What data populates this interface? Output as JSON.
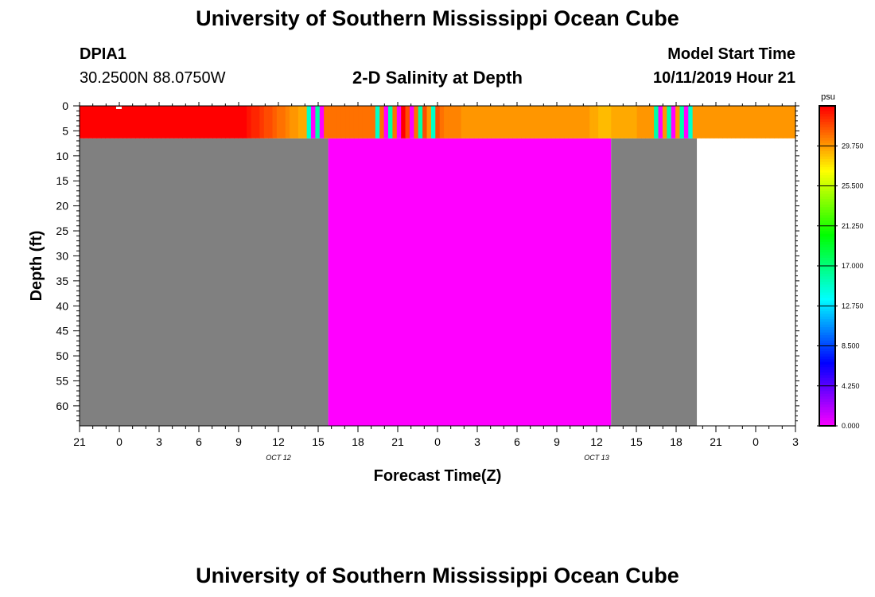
{
  "page": {
    "title_top": "University of Southern Mississippi Ocean Cube",
    "title_bottom": "University of Southern Mississippi Ocean Cube"
  },
  "header": {
    "station": "DPIA1",
    "coords": "30.2500N 88.0750W",
    "subtitle": "2-D Salinity at Depth",
    "model_label": "Model Start Time",
    "model_time": "10/11/2019 Hour 21"
  },
  "chart_data": {
    "type": "heatmap",
    "title": "2-D Salinity at Depth",
    "xlabel": "Forecast Time(Z)",
    "ylabel": "Depth (ft)",
    "x_tick_labels": [
      "21",
      "0",
      "3",
      "6",
      "9",
      "12",
      "15",
      "18",
      "21",
      "0",
      "3",
      "6",
      "9",
      "12",
      "15",
      "18",
      "21",
      "0",
      "3"
    ],
    "x_date_labels": [
      {
        "label": "OCT 12",
        "at_tick": 5
      },
      {
        "label": "OCT 13",
        "at_tick": 13
      }
    ],
    "y_tick_labels": [
      "0",
      "5",
      "10",
      "15",
      "20",
      "25",
      "30",
      "35",
      "40",
      "45",
      "50",
      "55",
      "60"
    ],
    "ylim": [
      0,
      64
    ],
    "y_reversed": true,
    "colorbar": {
      "unit": "psu",
      "min": 0,
      "max": 34,
      "labels": [
        "29.750",
        "25.500",
        "21.250",
        "17.000",
        "12.750",
        "8.500",
        "4.250",
        "0.000"
      ],
      "label_values": [
        29.75,
        25.5,
        21.25,
        17.0,
        12.75,
        8.5,
        4.25,
        0.0
      ]
    },
    "surface_layer_depth_ft": 6.5,
    "surface_salinity_hourly": [
      34,
      34,
      34,
      34,
      34,
      34,
      34,
      34,
      34,
      34,
      34,
      34,
      34,
      34,
      34,
      34,
      34,
      34,
      34,
      34,
      34,
      34,
      34,
      34,
      34,
      34,
      34,
      34,
      34,
      34,
      34,
      34,
      34,
      34,
      34,
      34,
      34,
      34,
      34,
      33.5,
      33,
      33,
      32.5,
      32,
      32,
      31.5,
      31,
      31,
      30.5,
      30,
      30,
      29.5,
      29.5,
      15,
      -1,
      16,
      -1,
      31,
      31,
      31,
      31,
      31,
      31,
      31,
      31,
      31,
      31,
      31,
      31,
      15,
      31,
      -1,
      16,
      31,
      -1,
      34,
      32,
      -1,
      31,
      16,
      32,
      30,
      15,
      32,
      31,
      30.5,
      30.5,
      30.5,
      30.5,
      30,
      30,
      30,
      30,
      30,
      30,
      30,
      30,
      30,
      30,
      30,
      30,
      30,
      30,
      30,
      30,
      30,
      30,
      30,
      30,
      30,
      30,
      30,
      30,
      30,
      30,
      30,
      30,
      30,
      30,
      29.5,
      29.5,
      29,
      29,
      29,
      29.5,
      29.5,
      29.5,
      29.5,
      29.5,
      29.5,
      30,
      30,
      30,
      30,
      16,
      -1,
      30,
      16,
      -1,
      30,
      16,
      -1,
      15,
      30,
      30,
      30,
      30,
      30,
      30,
      30,
      30,
      30,
      30,
      30,
      30,
      30,
      30,
      30,
      30,
      30,
      30,
      30,
      30,
      30,
      30,
      30,
      30
    ],
    "deep_mask": [
      {
        "from_hour": 0,
        "to_hour": 58,
        "value": "land"
      },
      {
        "from_hour": 58,
        "to_hour": 124,
        "value": 0
      },
      {
        "from_hour": 124,
        "to_hour": 144,
        "value": "land"
      }
    ],
    "colors": {
      "land": "#808080",
      "zero": "#ff00ff"
    }
  }
}
